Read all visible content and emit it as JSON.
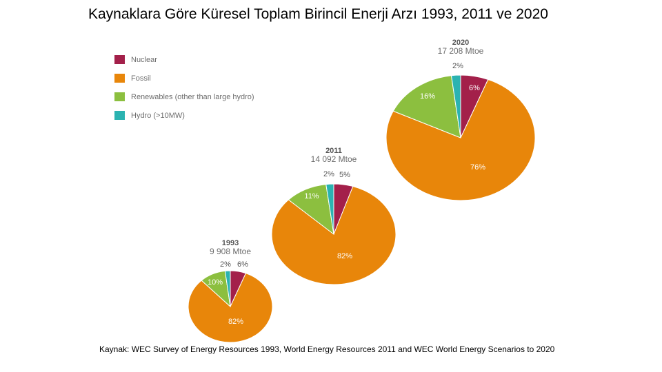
{
  "title": "Kaynaklara Göre  Küresel Toplam Birincil Enerji Arzı 1993, 2011 ve 2020",
  "legend": [
    {
      "label": "Nuclear",
      "color": "#a3204a"
    },
    {
      "label": "Fossil",
      "color": "#e8860a"
    },
    {
      "label": "Renewables (other than large hydro)",
      "color": "#8cbf3f"
    },
    {
      "label": "Hydro (>10MW)",
      "color": "#2bb3b1"
    }
  ],
  "source": "Kaynak: WEC Survey of Energy Resources 1993, World Energy Resources 2011 and WEC World Energy Scenarios to 2020",
  "chart_data": [
    {
      "type": "pie",
      "title": "1993",
      "subtitle": "9 908 Mtoe",
      "categories": [
        "Nuclear",
        "Fossil",
        "Renewables (other than large hydro)",
        "Hydro (>10MW)"
      ],
      "values": [
        6,
        82,
        10,
        2
      ],
      "labels": [
        "6%",
        "82%",
        "10%",
        "2%"
      ]
    },
    {
      "type": "pie",
      "title": "2011",
      "subtitle": "14 092 Mtoe",
      "categories": [
        "Nuclear",
        "Fossil",
        "Renewables (other than large hydro)",
        "Hydro (>10MW)"
      ],
      "values": [
        5,
        82,
        11,
        2
      ],
      "labels": [
        "5%",
        "82%",
        "11%",
        "2%"
      ]
    },
    {
      "type": "pie",
      "title": "2020",
      "subtitle": "17 208 Mtoe",
      "categories": [
        "Nuclear",
        "Fossil",
        "Renewables (other than large hydro)",
        "Hydro (>10MW)"
      ],
      "values": [
        6,
        76,
        16,
        2
      ],
      "labels": [
        "6%",
        "76%",
        "16%",
        "2%"
      ]
    }
  ]
}
